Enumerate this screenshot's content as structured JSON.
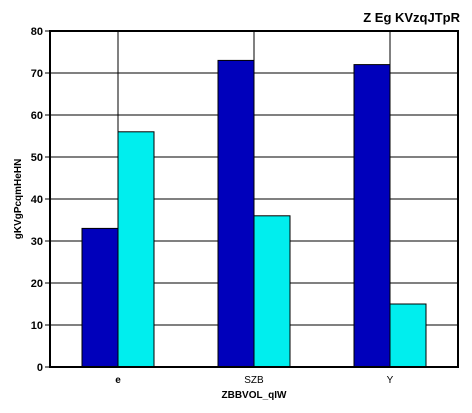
{
  "chart_data": {
    "type": "bar",
    "title": "Z Eg KVzqJTpR",
    "xlabel": "ZBBVOL_qIW",
    "ylabel": "gKVgPcqmHeHN",
    "categories": [
      "e",
      "SZB",
      "Y"
    ],
    "series": [
      {
        "values": [
          33,
          73,
          72
        ],
        "color": "#0000BB"
      },
      {
        "values": [
          56,
          36,
          15
        ],
        "color": "#00EEEE"
      }
    ],
    "ylim": [
      0,
      80
    ],
    "yticks": [
      0,
      10,
      20,
      30,
      40,
      50,
      60,
      70,
      80
    ],
    "grid": "horizontal-and-vertical",
    "legend": "none"
  }
}
